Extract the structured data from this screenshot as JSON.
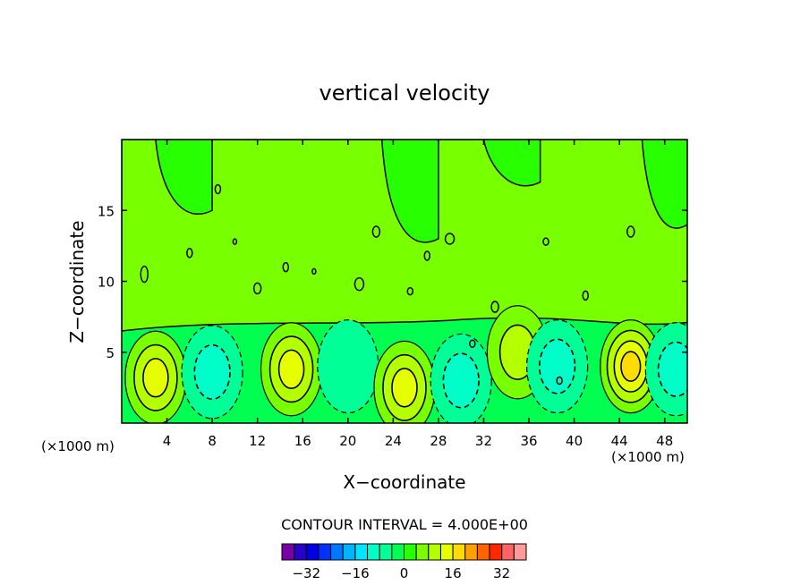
{
  "chart_data": {
    "type": "contour",
    "title": "vertical velocity",
    "xlabel": "X−coordinate",
    "ylabel": "Z−coordinate",
    "x_unit_left": "(×1000 m)",
    "x_unit_right": "(×1000 m)",
    "xlim": [
      0,
      50
    ],
    "ylim": [
      0,
      20
    ],
    "x_ticks": [
      4,
      8,
      12,
      16,
      20,
      24,
      28,
      32,
      36,
      40,
      44,
      48
    ],
    "y_ticks": [
      5,
      10,
      15
    ],
    "contour_interval_label": "CONTOUR INTERVAL = 4.000E+00",
    "colorbar": {
      "levels": [
        -36,
        -32,
        -28,
        -24,
        -20,
        -16,
        -12,
        -8,
        -4,
        0,
        4,
        8,
        12,
        16,
        20,
        24,
        28,
        32,
        36
      ],
      "tick_labels": [
        "−32",
        "−16",
        "0",
        "16",
        "32"
      ],
      "tick_values": [
        -32,
        -16,
        0,
        16,
        32
      ],
      "colors": [
        "#7a00a8",
        "#2b00c8",
        "#0000e6",
        "#0032ff",
        "#0078ff",
        "#00b4ff",
        "#00e6ff",
        "#00ffc8",
        "#00ff96",
        "#00ff50",
        "#28ff00",
        "#78ff00",
        "#b4ff00",
        "#e6ff00",
        "#ffdc00",
        "#ffa000",
        "#ff6400",
        "#ff2800",
        "#ff6464",
        "#ff9a9a"
      ]
    },
    "features": [
      {
        "kind": "updraft",
        "x": 3,
        "z": 3.2,
        "peak": 12
      },
      {
        "kind": "downdraft",
        "x": 8,
        "z": 3.6,
        "peak": -8
      },
      {
        "kind": "updraft",
        "x": 15,
        "z": 3.8,
        "peak": 12
      },
      {
        "kind": "downdraft",
        "x": 20,
        "z": 4,
        "peak": -4
      },
      {
        "kind": "updraft",
        "x": 25,
        "z": 2.5,
        "peak": 12
      },
      {
        "kind": "downdraft",
        "x": 30,
        "z": 3,
        "peak": -8
      },
      {
        "kind": "updraft",
        "x": 35,
        "z": 5,
        "peak": 8
      },
      {
        "kind": "downdraft",
        "x": 38.5,
        "z": 4,
        "peak": -8
      },
      {
        "kind": "updraft",
        "x": 45,
        "z": 4,
        "peak": 16
      },
      {
        "kind": "downdraft",
        "x": 49,
        "z": 3.8,
        "peak": -8
      }
    ]
  }
}
